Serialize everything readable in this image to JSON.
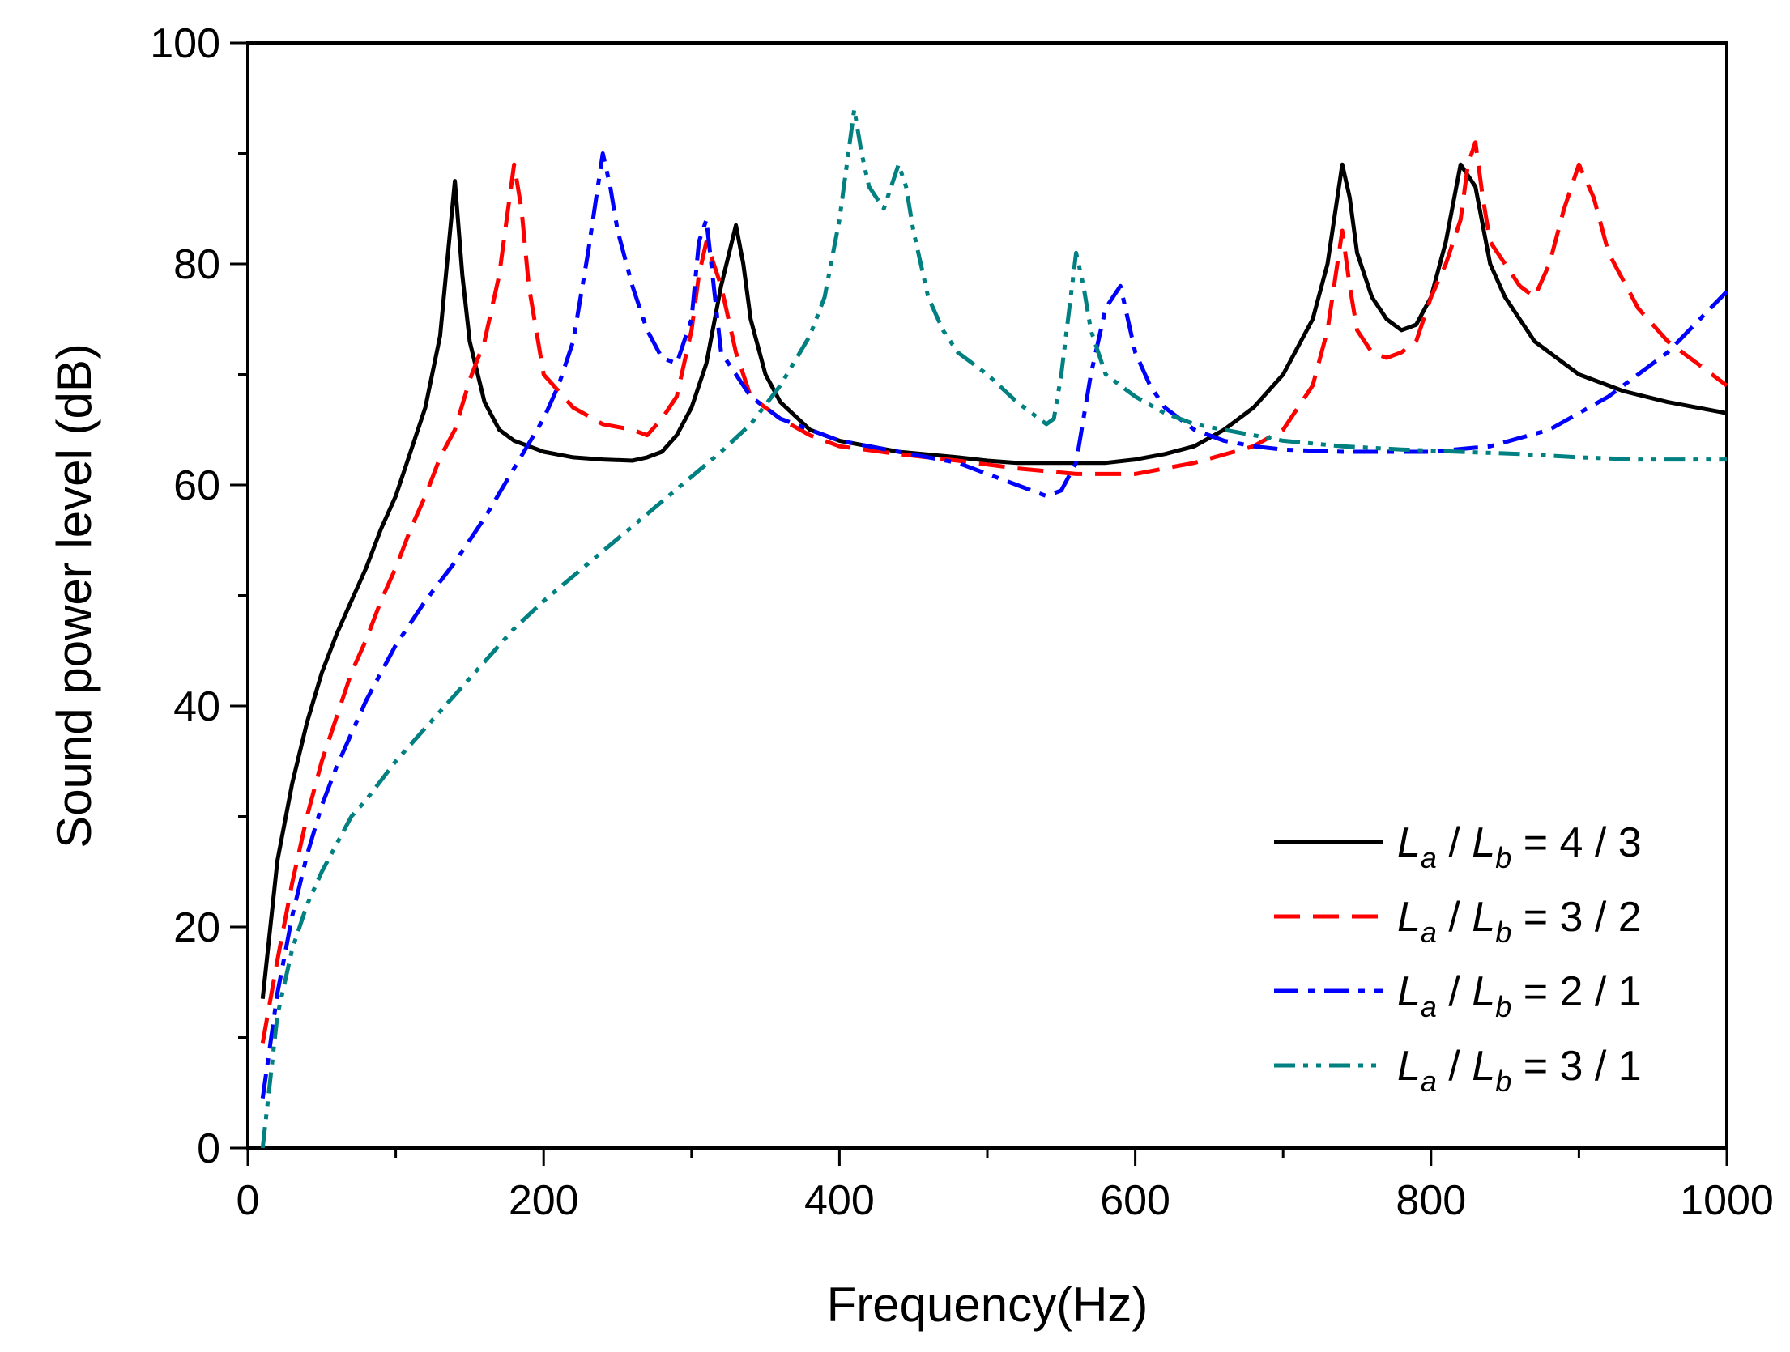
{
  "chart_data": {
    "type": "line",
    "title": "",
    "xlabel": "Frequency(Hz)",
    "ylabel": "Sound power level (dB)",
    "xlim": [
      0,
      1000
    ],
    "ylim": [
      0,
      100
    ],
    "x_ticks": [
      0,
      200,
      400,
      600,
      800,
      1000
    ],
    "y_ticks": [
      0,
      20,
      40,
      60,
      80,
      100
    ],
    "x_tick_labels": [
      "0",
      "200",
      "400",
      "600",
      "800",
      "1000"
    ],
    "y_tick_labels": [
      "0",
      "20",
      "40",
      "60",
      "80",
      "100"
    ],
    "x_minor_step": 100,
    "y_minor_step": 10,
    "grid": false,
    "legend_position": "bottom-right",
    "series": [
      {
        "name": "La / Lb = 4 / 3",
        "legend": {
          "var1": "L",
          "sub1": "a",
          "sep": " / ",
          "var2": "L",
          "sub2": "b",
          "rest": " = 4 / 3"
        },
        "color": "#000000",
        "dash": "solid",
        "x": [
          10,
          20,
          30,
          40,
          50,
          60,
          70,
          80,
          90,
          100,
          110,
          120,
          130,
          140,
          145,
          150,
          160,
          170,
          180,
          200,
          220,
          240,
          260,
          270,
          280,
          290,
          300,
          310,
          320,
          330,
          335,
          340,
          350,
          360,
          380,
          400,
          440,
          480,
          500,
          520,
          540,
          560,
          580,
          600,
          620,
          640,
          660,
          680,
          700,
          720,
          730,
          740,
          745,
          750,
          760,
          770,
          780,
          790,
          800,
          810,
          820,
          830,
          840,
          850,
          870,
          900,
          930,
          960,
          1000
        ],
        "y": [
          13.5,
          26,
          33,
          38.5,
          43,
          46.5,
          49.5,
          52.5,
          56,
          59,
          63,
          67,
          73.5,
          87.5,
          79,
          73,
          67.5,
          65,
          64,
          63,
          62.5,
          62.3,
          62.2,
          62.5,
          63,
          64.5,
          67,
          71,
          78,
          83.5,
          80,
          75,
          70,
          67.5,
          65,
          64,
          63,
          62.5,
          62.2,
          62,
          62,
          62,
          62,
          62.3,
          62.8,
          63.5,
          65,
          67,
          70,
          75,
          80,
          89,
          86,
          81,
          77,
          75,
          74,
          74.5,
          77,
          82,
          89,
          87,
          80,
          77,
          73,
          70,
          68.5,
          67.5,
          66.5
        ]
      },
      {
        "name": "La / Lb = 3 / 2",
        "legend": {
          "var1": "L",
          "sub1": "a",
          "sep": " / ",
          "var2": "L",
          "sub2": "b",
          "rest": " = 3 / 2"
        },
        "color": "#ff0000",
        "dash": "dash",
        "x": [
          10,
          20,
          30,
          40,
          50,
          60,
          70,
          80,
          90,
          100,
          110,
          120,
          130,
          140,
          150,
          160,
          170,
          175,
          180,
          185,
          190,
          200,
          220,
          240,
          260,
          270,
          280,
          290,
          300,
          305,
          310,
          320,
          330,
          340,
          360,
          380,
          400,
          440,
          480,
          520,
          560,
          600,
          640,
          680,
          700,
          720,
          730,
          740,
          745,
          750,
          760,
          770,
          780,
          790,
          800,
          810,
          820,
          825,
          830,
          835,
          840,
          860,
          870,
          880,
          890,
          900,
          910,
          920,
          940,
          960,
          980,
          1000
        ],
        "y": [
          9.5,
          17,
          24,
          30,
          35,
          39,
          43,
          46,
          49.5,
          52.5,
          56,
          59,
          62.5,
          65,
          69.5,
          73,
          79,
          84,
          89,
          85,
          78,
          70,
          67,
          65.5,
          65,
          64.5,
          66,
          68,
          74,
          79,
          82,
          78,
          72,
          68,
          66,
          64.5,
          63.5,
          62.8,
          62.2,
          61.5,
          61,
          61,
          62,
          63.5,
          65,
          69,
          74,
          83,
          78,
          74,
          72,
          71.5,
          72,
          73,
          77,
          80,
          84,
          89,
          91,
          86,
          82,
          78,
          77,
          80,
          85,
          89,
          86,
          81,
          76,
          73,
          71,
          69
        ]
      },
      {
        "name": "La / Lb = 2 / 1",
        "legend": {
          "var1": "L",
          "sub1": "a",
          "sep": " / ",
          "var2": "L",
          "sub2": "b",
          "rest": " = 2 / 1"
        },
        "color": "#0000ff",
        "dash": "dashdot",
        "x": [
          10,
          20,
          30,
          40,
          50,
          60,
          70,
          80,
          100,
          120,
          140,
          160,
          180,
          200,
          210,
          220,
          230,
          240,
          245,
          250,
          260,
          270,
          280,
          290,
          300,
          305,
          310,
          315,
          320,
          330,
          340,
          360,
          380,
          400,
          440,
          480,
          500,
          520,
          540,
          550,
          560,
          570,
          580,
          590,
          595,
          600,
          610,
          620,
          640,
          660,
          680,
          700,
          740,
          780,
          800,
          840,
          880,
          920,
          960,
          1000
        ],
        "y": [
          4.5,
          14,
          21,
          26.5,
          31,
          34.5,
          37.5,
          40.5,
          45.5,
          49.5,
          53,
          57,
          61.5,
          66,
          69,
          73,
          81,
          90,
          87,
          83,
          78,
          74,
          71.5,
          71,
          75,
          82,
          84,
          78,
          72,
          70,
          68,
          66,
          65,
          64,
          63,
          62,
          61,
          60,
          59,
          59.5,
          62,
          70,
          76,
          78,
          75,
          72,
          69,
          67,
          65,
          64,
          63.5,
          63.2,
          63,
          63,
          63,
          63.5,
          65,
          68,
          72,
          77.5
        ]
      },
      {
        "name": "La / Lb = 3 / 1",
        "legend": {
          "var1": "L",
          "sub1": "a",
          "sep": " / ",
          "var2": "L",
          "sub2": "b",
          "rest": " = 3 / 1"
        },
        "color": "#008080",
        "dash": "dashdotdot",
        "x": [
          10,
          20,
          30,
          40,
          50,
          60,
          70,
          80,
          100,
          120,
          140,
          160,
          180,
          200,
          240,
          280,
          320,
          340,
          360,
          380,
          390,
          400,
          410,
          415,
          420,
          430,
          440,
          445,
          450,
          460,
          470,
          480,
          500,
          520,
          540,
          545,
          550,
          560,
          565,
          570,
          580,
          600,
          620,
          640,
          660,
          680,
          700,
          740,
          780,
          820,
          860,
          900,
          940,
          1000
        ],
        "y": [
          0,
          12,
          18,
          22,
          25,
          27.5,
          30,
          31.5,
          35,
          38,
          41,
          44,
          47,
          49.5,
          54,
          58.5,
          63,
          65.5,
          69,
          73.5,
          77,
          84,
          94,
          90,
          87,
          85,
          89,
          87,
          83,
          77,
          74,
          72,
          70,
          67.5,
          65.5,
          66,
          70,
          81,
          78,
          74,
          70,
          68,
          66.5,
          65.5,
          65,
          64.5,
          64,
          63.5,
          63.2,
          63,
          62.8,
          62.5,
          62.3,
          62.3
        ]
      }
    ]
  }
}
